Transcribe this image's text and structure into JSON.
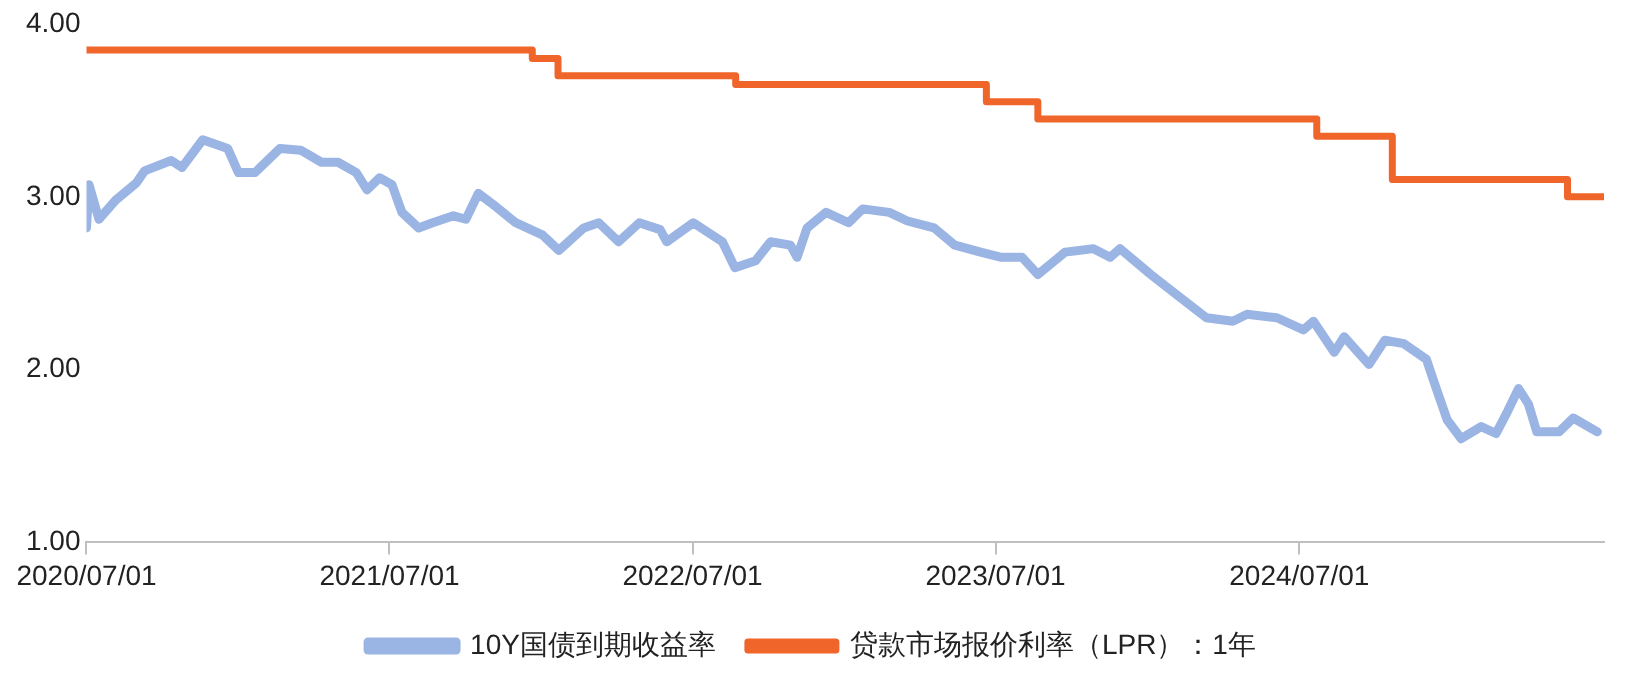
{
  "chart_data": {
    "type": "line",
    "xlim": [
      "2020-07-01",
      "2025-07-03"
    ],
    "xticks": [
      {
        "value": "2020-07-01",
        "label": "2020/07/01"
      },
      {
        "value": "2021-07-01",
        "label": "2021/07/01"
      },
      {
        "value": "2022-07-01",
        "label": "2022/07/01"
      },
      {
        "value": "2023-07-01",
        "label": "2023/07/01"
      },
      {
        "value": "2024-07-01",
        "label": "2024/07/01"
      }
    ],
    "ylim": [
      1,
      4
    ],
    "yticks": [
      {
        "value": 1,
        "label": "1.00"
      },
      {
        "value": 2,
        "label": "2.00"
      },
      {
        "value": 3,
        "label": "3.00"
      },
      {
        "value": 4,
        "label": "4.00"
      }
    ],
    "grid": false,
    "legend": "bottom",
    "marker": "none",
    "series": [
      {
        "name": "10Y国债到期收益率",
        "color": "#9ab4e4",
        "type": "line",
        "x": [
          "2020-07-01",
          "2020-07-04",
          "2020-07-16",
          "2020-08-05",
          "2020-08-30",
          "2020-09-09",
          "2020-10-11",
          "2020-10-24",
          "2020-11-18",
          "2020-12-18",
          "2020-12-31",
          "2021-01-20",
          "2021-02-19",
          "2021-03-16",
          "2021-04-10",
          "2021-04-30",
          "2021-05-22",
          "2021-06-04",
          "2021-06-19",
          "2021-07-04",
          "2021-07-16",
          "2021-08-05",
          "2021-08-22",
          "2021-09-16",
          "2021-10-01",
          "2021-10-16",
          "2021-11-07",
          "2021-11-30",
          "2022-01-01",
          "2022-01-21",
          "2022-02-20",
          "2022-03-10",
          "2022-04-03",
          "2022-04-28",
          "2022-05-23",
          "2022-05-31",
          "2022-07-02",
          "2022-08-06",
          "2022-08-21",
          "2022-09-15",
          "2022-10-03",
          "2022-10-27",
          "2022-11-04",
          "2022-11-16",
          "2022-12-09",
          "2023-01-05",
          "2023-01-22",
          "2023-02-23",
          "2023-03-17",
          "2023-04-18",
          "2023-05-13",
          "2023-06-13",
          "2023-07-08",
          "2023-08-02",
          "2023-08-21",
          "2023-09-23",
          "2023-10-27",
          "2023-11-16",
          "2023-11-28",
          "2024-01-04",
          "2024-02-05",
          "2024-03-11",
          "2024-04-12",
          "2024-04-29",
          "2024-06-04",
          "2024-07-06",
          "2024-07-18",
          "2024-08-12",
          "2024-08-24",
          "2024-09-23",
          "2024-10-12",
          "2024-11-04",
          "2024-12-01",
          "2024-12-13",
          "2024-12-26",
          "2025-01-12",
          "2025-02-05",
          "2025-02-23",
          "2025-03-09",
          "2025-03-22",
          "2025-04-03",
          "2025-04-13",
          "2025-05-10",
          "2025-05-27",
          "2025-06-25"
        ],
        "values": [
          2.82,
          3.07,
          2.87,
          2.98,
          3.08,
          3.15,
          3.21,
          3.17,
          3.33,
          3.28,
          3.14,
          3.14,
          3.28,
          3.27,
          3.2,
          3.2,
          3.14,
          3.04,
          3.11,
          3.07,
          2.91,
          2.82,
          2.85,
          2.89,
          2.87,
          3.02,
          2.94,
          2.85,
          2.78,
          2.69,
          2.82,
          2.85,
          2.74,
          2.85,
          2.81,
          2.74,
          2.85,
          2.74,
          2.59,
          2.63,
          2.74,
          2.72,
          2.65,
          2.82,
          2.91,
          2.85,
          2.93,
          2.91,
          2.86,
          2.82,
          2.72,
          2.68,
          2.65,
          2.65,
          2.55,
          2.68,
          2.7,
          2.65,
          2.7,
          2.55,
          2.43,
          2.3,
          2.28,
          2.32,
          2.3,
          2.23,
          2.28,
          2.1,
          2.19,
          2.03,
          2.17,
          2.15,
          2.06,
          1.89,
          1.71,
          1.6,
          1.67,
          1.63,
          1.76,
          1.89,
          1.8,
          1.64,
          1.64,
          1.72,
          1.64
        ]
      },
      {
        "name": "贷款市场报价利率（LPR）：1年",
        "color": "#f0652a",
        "type": "step",
        "x": [
          "2020-07-01",
          "2021-12-20",
          "2022-01-20",
          "2022-08-22",
          "2023-06-20",
          "2023-08-21",
          "2024-07-22",
          "2024-10-21",
          "2025-05-20",
          "2025-07-03"
        ],
        "values": [
          3.85,
          3.8,
          3.7,
          3.65,
          3.55,
          3.45,
          3.35,
          3.1,
          3.0,
          3.0
        ]
      }
    ]
  }
}
